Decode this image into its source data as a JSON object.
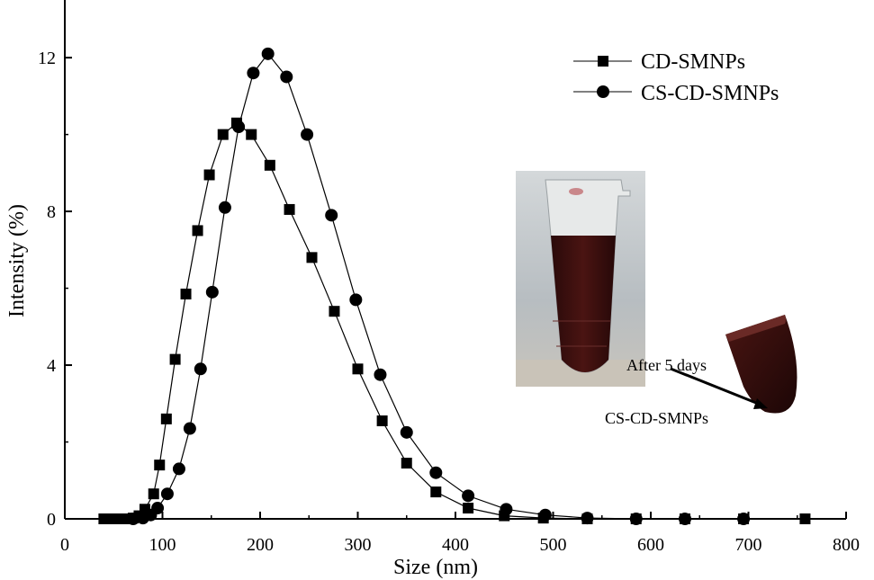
{
  "chart_data": {
    "type": "scatter",
    "xlabel": "Size (nm)",
    "ylabel": "Intensity (%)",
    "xlim": [
      0,
      800
    ],
    "ylim": [
      0,
      13.5
    ],
    "x_ticks": [
      0,
      100,
      200,
      300,
      400,
      500,
      600,
      700,
      800
    ],
    "y_ticks": [
      0,
      4,
      8,
      12
    ],
    "grid": false,
    "legend_position": "top-right",
    "series": [
      {
        "name": "CD-SMNPs",
        "marker": "square",
        "color": "#000000",
        "x": [
          40,
          48,
          56,
          63,
          70,
          76,
          82,
          91,
          97,
          104,
          113,
          124,
          136,
          148,
          162,
          176,
          191,
          210,
          230,
          253,
          276,
          300,
          325,
          350,
          380,
          413,
          450,
          490,
          535,
          585,
          635,
          695,
          758
        ],
        "y": [
          0,
          0,
          0,
          0,
          0.02,
          0.08,
          0.25,
          0.65,
          1.4,
          2.6,
          4.15,
          5.85,
          7.5,
          8.95,
          10.0,
          10.3,
          10.0,
          9.2,
          8.05,
          6.8,
          5.4,
          3.9,
          2.55,
          1.45,
          0.7,
          0.28,
          0.08,
          0.02,
          0,
          0,
          0,
          0,
          0
        ]
      },
      {
        "name": "CS-CD-SMNPs",
        "marker": "circle",
        "color": "#000000",
        "x": [
          70,
          80,
          88,
          95,
          105,
          117,
          128,
          139,
          151,
          164,
          178,
          193,
          208,
          227,
          248,
          273,
          298,
          323,
          350,
          380,
          413,
          452,
          492,
          535,
          585,
          635,
          695
        ],
        "y": [
          0,
          0.02,
          0.1,
          0.28,
          0.65,
          1.3,
          2.35,
          3.9,
          5.9,
          8.1,
          10.2,
          11.6,
          12.1,
          11.5,
          10.0,
          7.9,
          5.7,
          3.75,
          2.25,
          1.2,
          0.6,
          0.25,
          0.1,
          0.02,
          0,
          0,
          0
        ]
      }
    ],
    "inset": {
      "description_free": true,
      "annotation_top": "After 5 days",
      "annotation_bottom": "CS-CD-SMNPs",
      "tube_liquid_color": "#3a0e0c",
      "background_color": "#bfc4c8"
    }
  }
}
